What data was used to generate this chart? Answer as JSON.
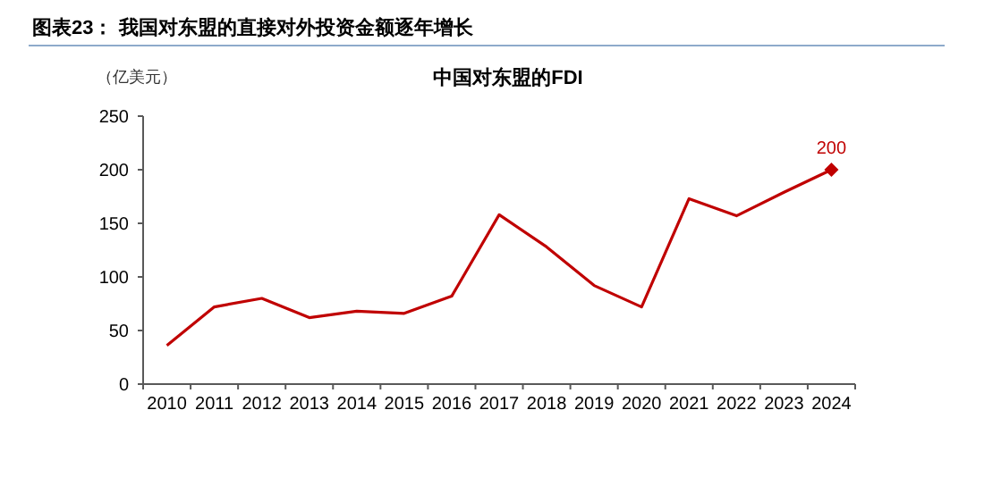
{
  "chart_data": {
    "type": "line",
    "title": "图表23：  我国对东盟的直接对外投资金额逐年增长",
    "subtitle": "中国对东盟的FDI",
    "ylabel": "（亿美元）",
    "categories": [
      "2010",
      "2011",
      "2012",
      "2013",
      "2014",
      "2015",
      "2016",
      "2017",
      "2018",
      "2019",
      "2020",
      "2021",
      "2022",
      "2023",
      "2024"
    ],
    "series": [
      {
        "color": "#c00000",
        "marker": "none",
        "line_style": "solid",
        "values": [
          36,
          72,
          80,
          62,
          68,
          66,
          82,
          158,
          128,
          92,
          72,
          173,
          157,
          179,
          200
        ],
        "value_labels": [
          null,
          null,
          null,
          null,
          null,
          null,
          null,
          null,
          null,
          null,
          null,
          null,
          null,
          null,
          "200"
        ]
      },
      {
        "type": "scatter",
        "color": "#c00000",
        "marker": "diamond",
        "values": [
          null,
          null,
          null,
          null,
          null,
          null,
          null,
          null,
          null,
          null,
          null,
          null,
          null,
          null,
          200
        ]
      }
    ],
    "ylim": [
      0,
      250
    ],
    "yticks": [
      0,
      50,
      100,
      150,
      200,
      250
    ],
    "grid": false
  }
}
